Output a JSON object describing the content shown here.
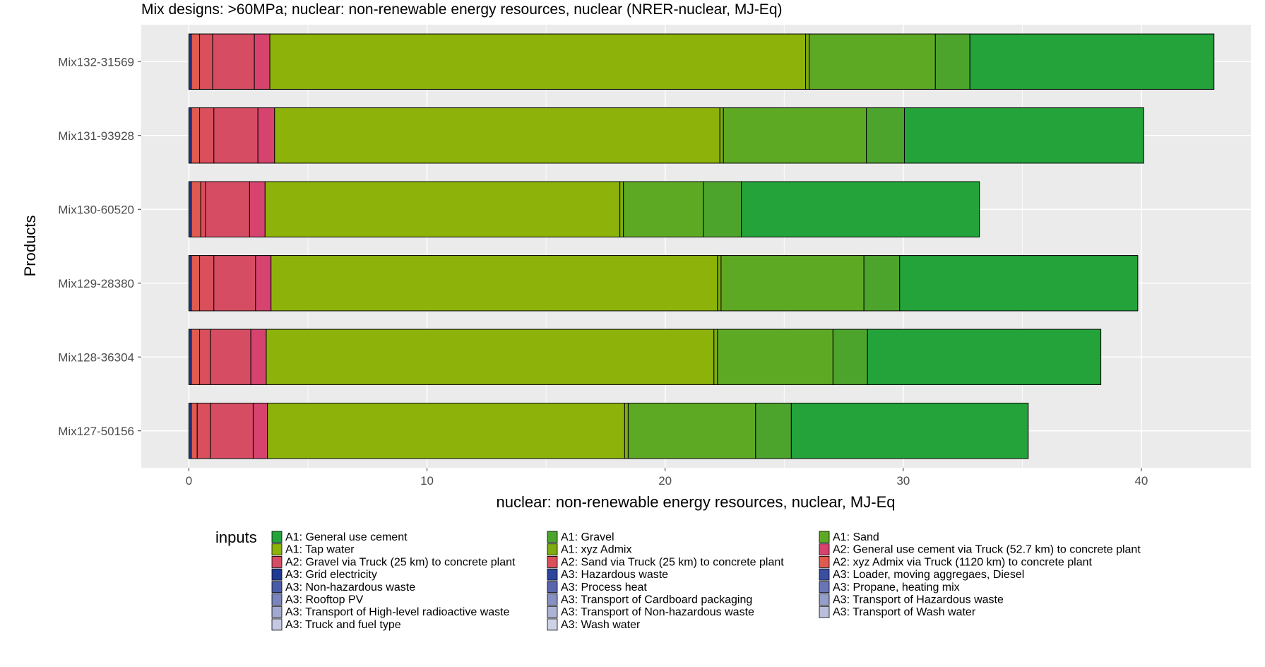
{
  "chart_data": {
    "type": "bar",
    "orientation": "horizontal",
    "stacked": true,
    "title": "Mix designs: >60MPa; nuclear: non-renewable energy resources, nuclear (NRER-nuclear, MJ-Eq)",
    "xlabel": "nuclear: non-renewable energy resources, nuclear, MJ-Eq",
    "ylabel": "Products",
    "xlim": [
      -2,
      44.6
    ],
    "xticks": [
      0,
      10,
      20,
      30,
      40
    ],
    "grid": true,
    "legend_title": "inputs",
    "legend_position": "bottom",
    "categories": [
      "Mix132-31569",
      "Mix131-93928",
      "Mix130-60520",
      "Mix129-28380",
      "Mix128-36304",
      "Mix127-50156"
    ],
    "series": [
      {
        "name": "A3: Grid electricity",
        "color": "#1f3a93",
        "values": [
          0.1,
          0.1,
          0.1,
          0.1,
          0.1,
          0.1
        ]
      },
      {
        "name": "A2: xyz Admix via Truck (1120 km) to concrete plant",
        "color": "#e05a4f",
        "values": [
          0.35,
          0.35,
          0.4,
          0.35,
          0.35,
          0.25
        ]
      },
      {
        "name": "A2: Sand via Truck (25 km) to concrete plant",
        "color": "#d9505c",
        "values": [
          0.55,
          0.6,
          0.2,
          0.6,
          0.45,
          0.55
        ]
      },
      {
        "name": "A2: Gravel via Truck (25 km) to concrete plant",
        "color": "#d64d63",
        "values": [
          1.75,
          1.85,
          1.85,
          1.75,
          1.7,
          1.8
        ]
      },
      {
        "name": "A2: General use cement via Truck (52.7 km) to concrete plant",
        "color": "#d6436e",
        "values": [
          0.65,
          0.7,
          0.65,
          0.65,
          0.65,
          0.6
        ]
      },
      {
        "name": "A1: Tap water",
        "color": "#8db30b",
        "values": [
          22.5,
          18.7,
          14.9,
          18.75,
          18.8,
          15.0
        ]
      },
      {
        "name": "A1: xyz Admix",
        "color": "#7fab12",
        "values": [
          0.15,
          0.15,
          0.15,
          0.15,
          0.15,
          0.15
        ]
      },
      {
        "name": "A1: Sand",
        "color": "#5ea923",
        "values": [
          5.3,
          6.0,
          3.35,
          6.0,
          4.85,
          5.35
        ]
      },
      {
        "name": "A1: Gravel",
        "color": "#4ca42c",
        "values": [
          1.45,
          1.6,
          1.6,
          1.5,
          1.45,
          1.5
        ]
      },
      {
        "name": "A1: General use cement",
        "color": "#23a33a",
        "values": [
          10.25,
          10.05,
          10.0,
          10.0,
          9.8,
          9.95
        ]
      }
    ]
  },
  "legend": {
    "title": "inputs",
    "items": [
      {
        "label": "A1: General use cement",
        "color": "#23a33a"
      },
      {
        "label": "A1: Gravel",
        "color": "#4ca42c"
      },
      {
        "label": "A1: Sand",
        "color": "#5ea923"
      },
      {
        "label": "A1: Tap water",
        "color": "#8db30b"
      },
      {
        "label": "A1: xyz Admix",
        "color": "#7fab12"
      },
      {
        "label": "A2: General use cement via Truck (52.7 km) to concrete plant",
        "color": "#d6436e"
      },
      {
        "label": "A2: Gravel via Truck (25 km) to concrete plant",
        "color": "#d64d63"
      },
      {
        "label": "A2: Sand via Truck (25 km) to concrete plant",
        "color": "#d9505c"
      },
      {
        "label": "A2: xyz Admix via Truck (1120 km) to concrete plant",
        "color": "#e05a4f"
      },
      {
        "label": "A3: Grid electricity",
        "color": "#1f3a93"
      },
      {
        "label": "A3: Hazardous waste",
        "color": "#2c449a"
      },
      {
        "label": "A3: Loader, moving aggregaes, Diesel",
        "color": "#3a4fa0"
      },
      {
        "label": "A3: Non-hazardous waste",
        "color": "#4a5ca8"
      },
      {
        "label": "A3: Process heat",
        "color": "#5966ae"
      },
      {
        "label": "A3: Propane, heating mix",
        "color": "#6a75b5"
      },
      {
        "label": "A3: Rooftop PV",
        "color": "#7a84bd"
      },
      {
        "label": "A3: Transport of Cardboard packaging",
        "color": "#8790c3"
      },
      {
        "label": "A3: Transport of Hazardous waste",
        "color": "#959dc9"
      },
      {
        "label": "A3: Transport of High-level radioactive waste",
        "color": "#a2a9cf"
      },
      {
        "label": "A3: Transport of Non-hazardous waste",
        "color": "#adb3d5"
      },
      {
        "label": "A3: Transport of Wash water",
        "color": "#b9bedb"
      },
      {
        "label": "A3: Truck and fuel type",
        "color": "#c4c8e1"
      },
      {
        "label": "A3: Wash water",
        "color": "#ced2e7"
      }
    ]
  }
}
